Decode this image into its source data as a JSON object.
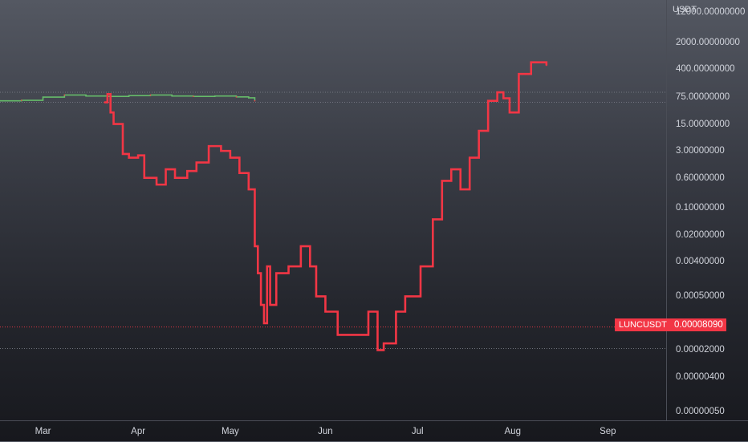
{
  "chart_data": {
    "type": "line",
    "title": "",
    "xlabel": "",
    "ylabel": "USDT",
    "y_scale": "log",
    "ylim": [
      3e-07,
      25000
    ],
    "x_range": [
      "2022-02-15",
      "2022-09-20"
    ],
    "y_ticks": [
      {
        "value": 12000,
        "label": "12000.00000000"
      },
      {
        "value": 2000,
        "label": "2000.00000000"
      },
      {
        "value": 400,
        "label": "400.00000000"
      },
      {
        "value": 75,
        "label": "75.00000000"
      },
      {
        "value": 15,
        "label": "15.00000000"
      },
      {
        "value": 3,
        "label": "3.00000000"
      },
      {
        "value": 0.6,
        "label": "0.60000000"
      },
      {
        "value": 0.1,
        "label": "0.10000000"
      },
      {
        "value": 0.02,
        "label": "0.02000000"
      },
      {
        "value": 0.004,
        "label": "0.00400000"
      },
      {
        "value": 0.0005,
        "label": "0.00050000"
      },
      {
        "value": 2e-05,
        "label": "0.00002000"
      },
      {
        "value": 4e-06,
        "label": "0.00000400"
      },
      {
        "value": 5e-07,
        "label": "0.00000050"
      }
    ],
    "x_ticks": [
      {
        "date": "2022-03-01",
        "label": "Mar"
      },
      {
        "date": "2022-04-01",
        "label": "Apr"
      },
      {
        "date": "2022-05-01",
        "label": "May"
      },
      {
        "date": "2022-06-01",
        "label": "Jun"
      },
      {
        "date": "2022-07-01",
        "label": "Jul"
      },
      {
        "date": "2022-08-01",
        "label": "Aug"
      },
      {
        "date": "2022-09-01",
        "label": "Sep"
      }
    ],
    "horizontal_lines": [
      {
        "value": 100,
        "color": "#787b86"
      },
      {
        "value": 55,
        "color": "#787b86"
      },
      {
        "value": 8e-05,
        "color": "#f23645"
      },
      {
        "value": 2.2e-05,
        "color": "#787b86"
      }
    ],
    "series": [
      {
        "name": "",
        "color": "#66bb6a",
        "alt_color": "#f23645",
        "x": [
          "2022-02-15",
          "2022-02-22",
          "2022-03-01",
          "2022-03-08",
          "2022-03-15",
          "2022-03-22",
          "2022-03-29",
          "2022-04-05",
          "2022-04-12",
          "2022-04-19",
          "2022-04-26",
          "2022-05-03",
          "2022-05-07",
          "2022-05-09"
        ],
        "y": [
          60,
          62,
          75,
          85,
          80,
          78,
          82,
          85,
          80,
          78,
          80,
          76,
          72,
          60
        ]
      },
      {
        "name": "",
        "color": "#f23645",
        "x": [
          "2022-03-21",
          "2022-03-22",
          "2022-03-23",
          "2022-03-24",
          "2022-03-27",
          "2022-03-29",
          "2022-04-01",
          "2022-04-03",
          "2022-04-07",
          "2022-04-10",
          "2022-04-13",
          "2022-04-17",
          "2022-04-20",
          "2022-04-24",
          "2022-04-28",
          "2022-05-01",
          "2022-05-04",
          "2022-05-07",
          "2022-05-09",
          "2022-05-10",
          "2022-05-11",
          "2022-05-12",
          "2022-05-13",
          "2022-05-14",
          "2022-05-16",
          "2022-05-20",
          "2022-05-24",
          "2022-05-27",
          "2022-05-29",
          "2022-06-01",
          "2022-06-05",
          "2022-06-10",
          "2022-06-15",
          "2022-06-18",
          "2022-06-20",
          "2022-06-24",
          "2022-06-27",
          "2022-07-02",
          "2022-07-06",
          "2022-07-09",
          "2022-07-12",
          "2022-07-15",
          "2022-07-18",
          "2022-07-21",
          "2022-07-24",
          "2022-07-27",
          "2022-07-29",
          "2022-07-31",
          "2022-08-03",
          "2022-08-07",
          "2022-08-10",
          "2022-08-12"
        ],
        "y": [
          55,
          90,
          30,
          15,
          2.5,
          2.0,
          2.3,
          0.6,
          0.4,
          1.0,
          0.6,
          0.9,
          1.5,
          4,
          3,
          2,
          0.8,
          0.3,
          0.01,
          0.002,
          0.0003,
          0.0001,
          0.003,
          0.0003,
          0.002,
          0.003,
          0.01,
          0.003,
          0.0005,
          0.0002,
          5e-05,
          5e-05,
          0.0002,
          2e-05,
          3e-05,
          0.0002,
          0.0005,
          0.003,
          0.05,
          0.5,
          1.0,
          0.3,
          2.0,
          10,
          60,
          100,
          70,
          30,
          300,
          600,
          600,
          500
        ]
      }
    ],
    "legend": "none",
    "grid": false
  },
  "symbol_label": "LUNCUSDT",
  "last_price_label": "0.00008090"
}
